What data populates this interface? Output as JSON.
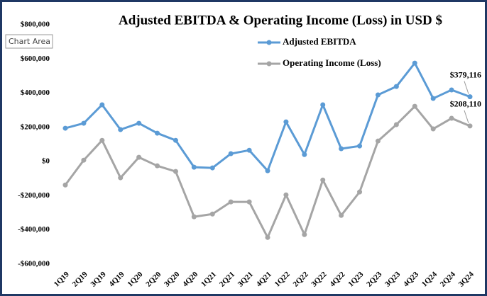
{
  "tooltip": "Chart Area",
  "chart_data": {
    "type": "line",
    "title": "Adjusted EBITDA & Operating Income (Loss) in USD $",
    "categories": [
      "1Q19",
      "2Q19",
      "3Q19",
      "4Q19",
      "1Q20",
      "2Q20",
      "3Q20",
      "4Q20",
      "1Q21",
      "2Q21",
      "3Q21",
      "4Q21",
      "1Q22",
      "2Q22",
      "3Q22",
      "4Q22",
      "1Q23",
      "2Q23",
      "3Q23",
      "4Q23",
      "1Q24",
      "2Q24",
      "3Q24"
    ],
    "series": [
      {
        "name": "Adjusted EBITDA",
        "color": "#5b9bd5",
        "values": [
          195000,
          224000,
          332000,
          187000,
          224000,
          166000,
          124000,
          -33000,
          -37000,
          46000,
          66000,
          -54000,
          232000,
          41000,
          332000,
          75000,
          91000,
          390000,
          439000,
          576000,
          369000,
          419000,
          379116
        ],
        "value_labels": [
          null,
          null,
          null,
          null,
          null,
          null,
          null,
          null,
          null,
          null,
          null,
          null,
          null,
          null,
          null,
          null,
          null,
          null,
          null,
          null,
          null,
          null,
          "$379,116"
        ]
      },
      {
        "name": "Operating Income (Loss)",
        "color": "#a5a5a5",
        "values": [
          -137000,
          8000,
          124000,
          -95000,
          25000,
          -25000,
          -58000,
          -323000,
          -307000,
          -236000,
          -236000,
          -444000,
          -195000,
          -427000,
          -108000,
          -315000,
          -178000,
          120000,
          216000,
          323000,
          191000,
          253000,
          208110
        ],
        "value_labels": [
          null,
          null,
          null,
          null,
          null,
          null,
          null,
          null,
          null,
          null,
          null,
          null,
          null,
          null,
          null,
          null,
          null,
          null,
          null,
          null,
          null,
          null,
          "$208,110"
        ]
      }
    ],
    "ylim": [
      -600000,
      800000
    ],
    "yticks": [
      {
        "value": -600000,
        "label": "-$600,000"
      },
      {
        "value": -400000,
        "label": "-$400,000"
      },
      {
        "value": -200000,
        "label": "-$200,000"
      },
      {
        "value": 0,
        "label": "$0"
      },
      {
        "value": 200000,
        "label": "$200,000"
      },
      {
        "value": 400000,
        "label": "$400,000"
      },
      {
        "value": 600000,
        "label": "$600,000"
      },
      {
        "value": 800000,
        "label": "$800,000"
      }
    ],
    "grid": false
  }
}
